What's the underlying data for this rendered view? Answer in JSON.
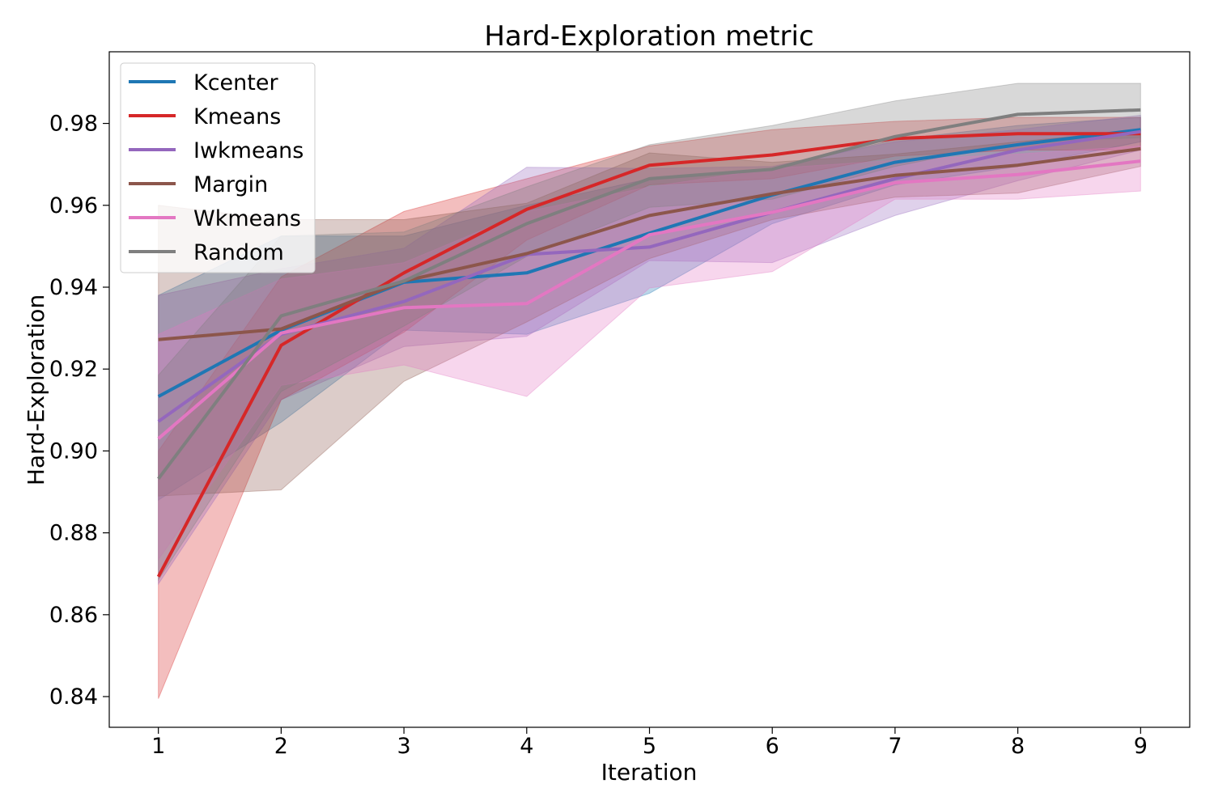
{
  "chart_data": {
    "type": "line",
    "title": "Hard-Exploration metric",
    "xlabel": "Iteration",
    "ylabel": "Hard-Exploration",
    "x": [
      1,
      2,
      3,
      4,
      5,
      6,
      7,
      8,
      9
    ],
    "xlim": [
      0.6,
      9.4
    ],
    "ylim": [
      0.8325,
      0.9975
    ],
    "xticks": [
      "1",
      "2",
      "3",
      "4",
      "5",
      "6",
      "7",
      "8",
      "9"
    ],
    "yticks": [
      "0.84",
      "0.86",
      "0.88",
      "0.90",
      "0.92",
      "0.94",
      "0.96",
      "0.98"
    ],
    "grid": false,
    "legend_position": "upper-left",
    "series": [
      {
        "name": "Kcenter",
        "color": "#1f77b4",
        "values": [
          0.9133,
          0.9295,
          0.9412,
          0.9435,
          0.9532,
          0.9625,
          0.9705,
          0.9748,
          0.9785
        ],
        "band_upper": [
          0.938,
          0.9525,
          0.9525,
          0.96,
          0.9665,
          0.969,
          0.976,
          0.9795,
          0.9815
        ],
        "band_lower": [
          0.888,
          0.907,
          0.9295,
          0.9285,
          0.9385,
          0.9555,
          0.965,
          0.9695,
          0.9755
        ]
      },
      {
        "name": "Kmeans",
        "color": "#d62728",
        "values": [
          0.8693,
          0.9258,
          0.9435,
          0.959,
          0.9698,
          0.9723,
          0.9763,
          0.9775,
          0.9775
        ],
        "band_upper": [
          0.9,
          0.9425,
          0.9585,
          0.9665,
          0.9745,
          0.9785,
          0.9805,
          0.9815,
          0.9815
        ],
        "band_lower": [
          0.8395,
          0.9125,
          0.929,
          0.9515,
          0.965,
          0.9665,
          0.972,
          0.9735,
          0.9735
        ]
      },
      {
        "name": "Iwkmeans",
        "color": "#9467bd",
        "values": [
          0.9072,
          0.9285,
          0.9365,
          0.948,
          0.9498,
          0.9583,
          0.9665,
          0.9735,
          0.978
        ],
        "band_upper": [
          0.938,
          0.9445,
          0.9495,
          0.9693,
          0.969,
          0.9695,
          0.9755,
          0.9785,
          0.982
        ],
        "band_lower": [
          0.8675,
          0.9125,
          0.9255,
          0.928,
          0.9465,
          0.946,
          0.9575,
          0.966,
          0.9735
        ]
      },
      {
        "name": "Margin",
        "color": "#8c564b",
        "values": [
          0.9272,
          0.9298,
          0.9415,
          0.9482,
          0.9575,
          0.9628,
          0.9673,
          0.9698,
          0.9738
        ],
        "band_upper": [
          0.96,
          0.9565,
          0.9565,
          0.9605,
          0.9728,
          0.9705,
          0.9725,
          0.9755,
          0.9785
        ],
        "band_lower": [
          0.889,
          0.8905,
          0.917,
          0.9315,
          0.947,
          0.9565,
          0.962,
          0.963,
          0.9695
        ]
      },
      {
        "name": "Wkmeans",
        "color": "#e377c2",
        "values": [
          0.903,
          0.9288,
          0.935,
          0.936,
          0.9528,
          0.9583,
          0.9655,
          0.9675,
          0.9708
        ],
        "band_upper": [
          0.9285,
          0.942,
          0.946,
          0.9585,
          0.9645,
          0.969,
          0.971,
          0.9725,
          0.9745
        ],
        "band_lower": [
          0.8735,
          0.916,
          0.921,
          0.9133,
          0.9398,
          0.9438,
          0.9615,
          0.9615,
          0.9635
        ]
      },
      {
        "name": "Random",
        "color": "#7f7f7f",
        "values": [
          0.8932,
          0.933,
          0.9415,
          0.9555,
          0.9665,
          0.9688,
          0.9768,
          0.9822,
          0.9833
        ],
        "band_upper": [
          0.9185,
          0.9525,
          0.9535,
          0.9645,
          0.9748,
          0.9795,
          0.9855,
          0.9898,
          0.9898
        ],
        "band_lower": [
          0.8685,
          0.9145,
          0.9305,
          0.9475,
          0.9595,
          0.9615,
          0.9695,
          0.9755,
          0.9765
        ]
      }
    ]
  }
}
